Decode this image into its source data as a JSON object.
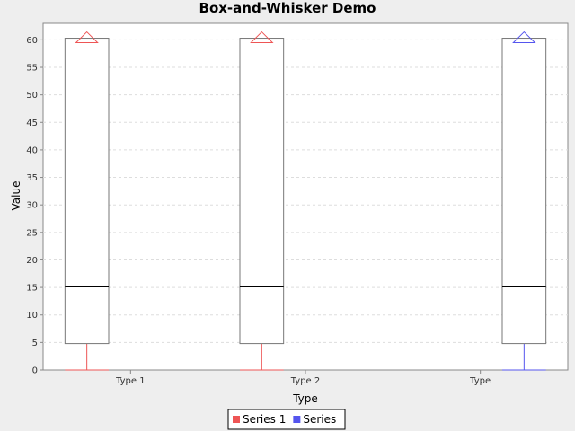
{
  "chart_data": {
    "type": "box",
    "title": "Box-and-Whisker Demo",
    "xlabel": "Type",
    "ylabel": "Value",
    "ylim": [
      0,
      63
    ],
    "yticks": [
      0,
      5,
      10,
      15,
      20,
      25,
      30,
      35,
      40,
      45,
      50,
      55,
      60
    ],
    "grid": true,
    "legend_position": "bottom",
    "categories": [
      "Type 1",
      "Type 2",
      "Type"
    ],
    "series": [
      {
        "name": "Series 1",
        "color": "#ee5555",
        "boxes": [
          {
            "category": "Type 1",
            "min": 0,
            "q1": 4.8,
            "median": 15.1,
            "q3": 60.3,
            "max": 60.3,
            "outliers": [
              60.3
            ]
          },
          {
            "category": "Type 2",
            "min": 0,
            "q1": 4.8,
            "median": 15.1,
            "q3": 60.3,
            "max": 60.3,
            "outliers": [
              60.3
            ]
          }
        ]
      },
      {
        "name": "Series",
        "color": "#5555ee",
        "boxes": [
          {
            "category": "Type",
            "min": 0,
            "q1": 4.8,
            "median": 15.1,
            "q3": 60.3,
            "max": 60.3,
            "outliers": [
              60.3
            ]
          }
        ]
      }
    ]
  }
}
